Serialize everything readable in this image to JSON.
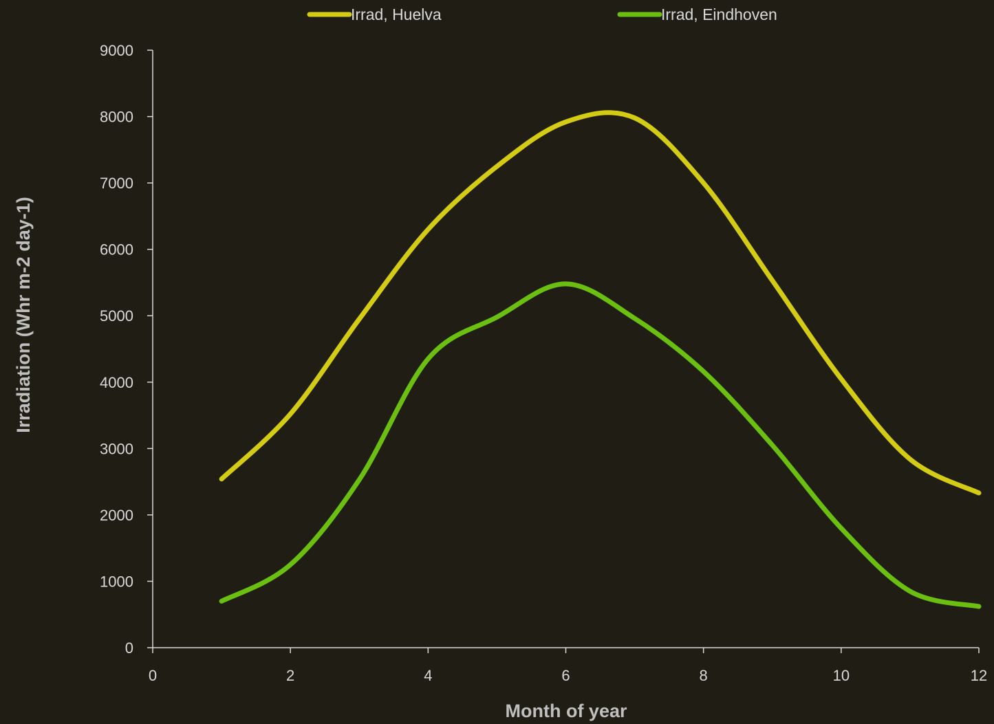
{
  "chart_data": {
    "type": "line",
    "title": "",
    "xlabel": "Month of year",
    "ylabel": "Irradiation (Whr m-2 day-1)",
    "xlim": [
      0,
      12
    ],
    "ylim": [
      0,
      9000
    ],
    "x_ticks": [
      "0",
      "2",
      "4",
      "6",
      "8",
      "10",
      "12"
    ],
    "y_ticks": [
      "0",
      "1000",
      "2000",
      "3000",
      "4000",
      "5000",
      "6000",
      "7000",
      "8000",
      "9000"
    ],
    "grid": false,
    "legend_position": "top",
    "smooth": true,
    "x": [
      1,
      2,
      3,
      4,
      5,
      6,
      7,
      8,
      9,
      10,
      11,
      12
    ],
    "series": [
      {
        "name": "Irrad, Huelva",
        "color": "#d4cc14",
        "values": [
          2540,
          3520,
          4950,
          6300,
          7250,
          7920,
          7980,
          7000,
          5530,
          4050,
          2840,
          2330
        ]
      },
      {
        "name": "Irrad, Eindhoven",
        "color": "#6bbf10",
        "values": [
          700,
          1250,
          2530,
          4350,
          4980,
          5480,
          4960,
          4160,
          3050,
          1800,
          850,
          620
        ]
      }
    ]
  }
}
